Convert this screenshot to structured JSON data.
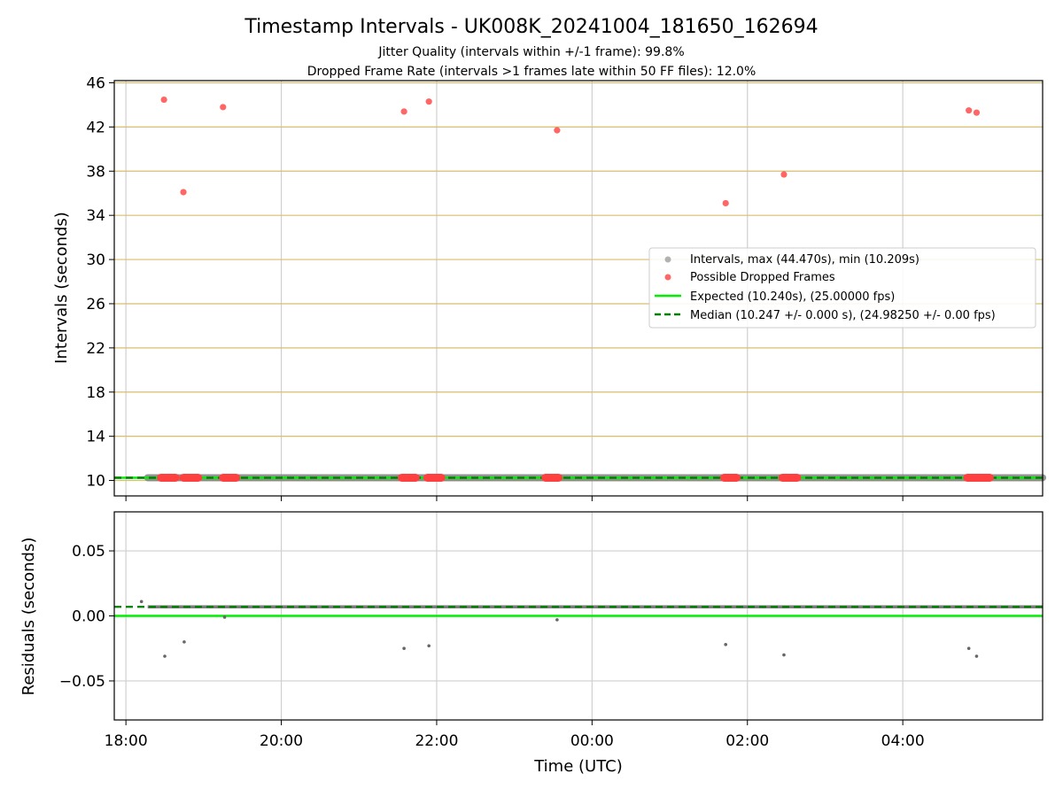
{
  "chart_data": [
    {
      "type": "scatter",
      "title": "Timestamp Intervals - UK008K_20241004_181650_162694",
      "subtitle_lines": [
        "Jitter Quality (intervals within +/-1 frame): 99.8%",
        "Dropped Frame Rate (intervals >1 frames late within 50 FF files): 12.0%"
      ],
      "xlabel": "",
      "ylabel": "Intervals (seconds)",
      "x_unit": "hours since 18:00 UTC",
      "xlim": [
        -0.15,
        11.8
      ],
      "ylim": [
        8.6,
        46.2
      ],
      "yticks": [
        10,
        14,
        18,
        22,
        26,
        30,
        34,
        38,
        42,
        46
      ],
      "ytick_labels": [
        "10",
        "14",
        "18",
        "22",
        "26",
        "30",
        "34",
        "38",
        "42",
        "46"
      ],
      "grid": "horizontal goldenrod lines, vertical gray lines",
      "legend_placement": "center-right",
      "intervals": {
        "name": "Intervals, max (44.470s), min (10.209s)",
        "x_start": 0.28,
        "x_end": 11.8,
        "y": 10.247,
        "color": "#808080"
      },
      "dropped_frames": {
        "name": "Possible Dropped Frames",
        "color": "#ff4040",
        "points": [
          {
            "x": 0.49,
            "y": 44.47
          },
          {
            "x": 0.74,
            "y": 36.1
          },
          {
            "x": 1.25,
            "y": 43.8
          },
          {
            "x": 3.58,
            "y": 43.4
          },
          {
            "x": 3.9,
            "y": 44.3
          },
          {
            "x": 5.55,
            "y": 41.7
          },
          {
            "x": 7.72,
            "y": 35.1
          },
          {
            "x": 8.47,
            "y": 37.7
          },
          {
            "x": 10.85,
            "y": 43.5
          },
          {
            "x": 10.95,
            "y": 43.3
          }
        ],
        "baseline_clusters": [
          {
            "x_start": 0.45,
            "x_end": 0.64
          },
          {
            "x_start": 0.74,
            "x_end": 0.93
          },
          {
            "x_start": 1.25,
            "x_end": 1.42
          },
          {
            "x_start": 3.55,
            "x_end": 3.73
          },
          {
            "x_start": 3.88,
            "x_end": 4.06
          },
          {
            "x_start": 5.4,
            "x_end": 5.57
          },
          {
            "x_start": 7.7,
            "x_end": 7.86
          },
          {
            "x_start": 8.45,
            "x_end": 8.64
          },
          {
            "x_start": 10.83,
            "x_end": 11.12
          }
        ]
      },
      "expected": {
        "name": "Expected (10.240s), (25.00000 fps)",
        "y": 10.24,
        "color": "#00ee00"
      },
      "median": {
        "name": "Median (10.247 +/- 0.000 s), (24.98250 +/- 0.00 fps)",
        "y": 10.247,
        "color": "#008000"
      }
    },
    {
      "type": "scatter",
      "xlabel": "Time (UTC)",
      "ylabel": "Residuals (seconds)",
      "xlim": [
        -0.15,
        11.8
      ],
      "ylim": [
        -0.08,
        0.08
      ],
      "xticks": [
        0,
        2,
        4,
        6,
        8,
        10
      ],
      "xtick_labels": [
        "18:00",
        "20:00",
        "22:00",
        "00:00",
        "02:00",
        "04:00"
      ],
      "yticks": [
        -0.05,
        0.0,
        0.05
      ],
      "ytick_labels": [
        "−0.05",
        "0.00",
        "0.05"
      ],
      "grid": "gray lines both axes",
      "baseline_residual": 0.007,
      "expected_residual": 0.0,
      "median_residual": 0.007,
      "outliers": [
        {
          "x": 0.2,
          "y": 0.011
        },
        {
          "x": 0.5,
          "y": -0.031
        },
        {
          "x": 0.75,
          "y": -0.02
        },
        {
          "x": 1.27,
          "y": -0.001
        },
        {
          "x": 3.58,
          "y": -0.025
        },
        {
          "x": 3.9,
          "y": -0.023
        },
        {
          "x": 5.55,
          "y": -0.003
        },
        {
          "x": 7.72,
          "y": -0.022
        },
        {
          "x": 8.47,
          "y": -0.03
        },
        {
          "x": 10.85,
          "y": -0.025
        },
        {
          "x": 10.95,
          "y": -0.031
        }
      ]
    }
  ]
}
